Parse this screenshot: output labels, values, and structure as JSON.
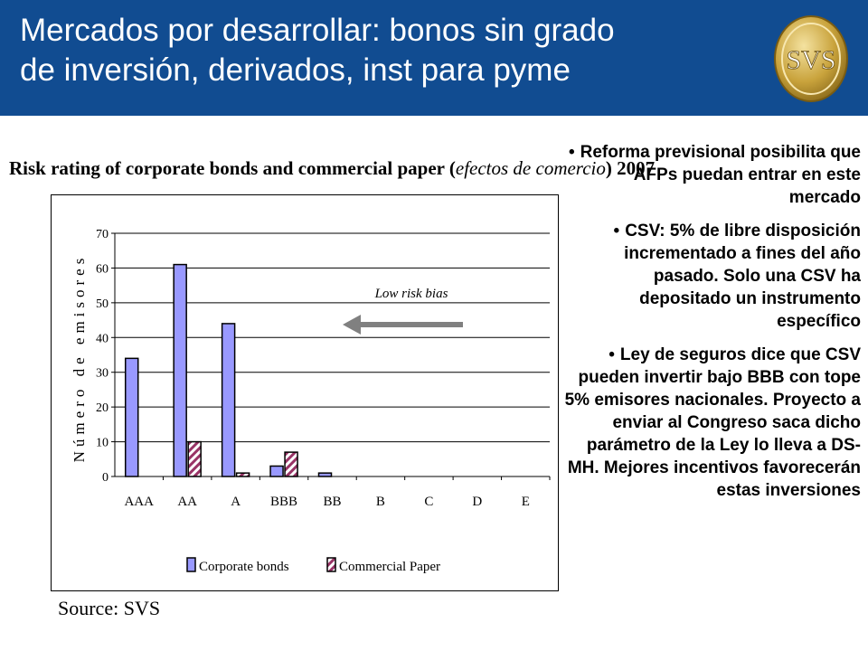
{
  "header": {
    "title_line1": "Mercados por desarrollar: bonos sin grado",
    "title_line2": "de inversión, derivados, inst para pyme",
    "logo_text": "SVS"
  },
  "chart_heading": {
    "main": "Risk rating of corporate bonds and commercial paper (",
    "italic": "efectos de comercio",
    "end": ") 2007"
  },
  "source": "Source: SVS",
  "bullets": [
    "Reforma previsional posibilita que AFPs puedan entrar en este mercado",
    "CSV: 5% de libre disposición incrementado a fines del año pasado. Solo una CSV ha depositado un instrumento específico",
    "Ley de seguros dice que CSV pueden invertir bajo BBB con tope 5% emisores nacionales. Proyecto a enviar al Congreso saca dicho parámetro de la Ley lo lleva a DS-MH. Mejores incentivos favorecerán estas inversiones"
  ],
  "colors": {
    "header_bg": "#114c91",
    "corporate": "#9999ff",
    "commercial_stripe": "#993366",
    "arrow": "#808080"
  },
  "chart_data": {
    "type": "bar",
    "categories": [
      "AAA",
      "AA",
      "A",
      "BBB",
      "BB",
      "B",
      "C",
      "D",
      "E"
    ],
    "series": [
      {
        "name": "Corporate bonds",
        "values": [
          34,
          61,
          44,
          3,
          1,
          0,
          0,
          0,
          0
        ]
      },
      {
        "name": "Commercial Paper",
        "values": [
          0,
          10,
          1,
          7,
          0,
          0,
          0,
          0,
          0
        ]
      }
    ],
    "ylabel": "Número de emisores",
    "ylim": [
      0,
      70
    ],
    "yticks": [
      0,
      10,
      20,
      30,
      40,
      50,
      60,
      70
    ],
    "grid": true,
    "legend": "bottom",
    "annotation": "Low risk bias"
  }
}
